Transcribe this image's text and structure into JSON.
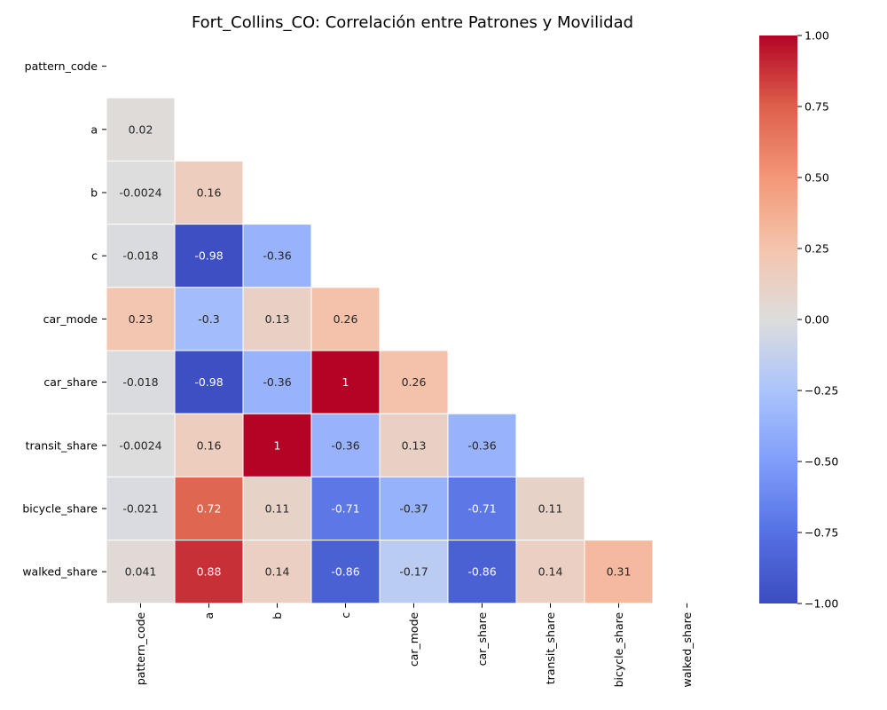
{
  "chart_data": {
    "type": "heatmap",
    "title": "Fort_Collins_CO: Correlación entre Patrones y Movilidad",
    "variables": [
      "pattern_code",
      "a",
      "b",
      "c",
      "car_mode",
      "car_share",
      "transit_share",
      "bicycle_share",
      "walked_share"
    ],
    "mask": "upper-triangle-including-diagonal",
    "matrix": [
      [
        null,
        null,
        null,
        null,
        null,
        null,
        null,
        null,
        null
      ],
      [
        0.02,
        null,
        null,
        null,
        null,
        null,
        null,
        null,
        null
      ],
      [
        -0.0024,
        0.16,
        null,
        null,
        null,
        null,
        null,
        null,
        null
      ],
      [
        -0.018,
        -0.98,
        -0.36,
        null,
        null,
        null,
        null,
        null,
        null
      ],
      [
        0.23,
        -0.3,
        0.13,
        0.26,
        null,
        null,
        null,
        null,
        null
      ],
      [
        -0.018,
        -0.98,
        -0.36,
        1,
        0.26,
        null,
        null,
        null,
        null
      ],
      [
        -0.0024,
        0.16,
        1,
        -0.36,
        0.13,
        -0.36,
        null,
        null,
        null
      ],
      [
        -0.021,
        0.72,
        0.11,
        -0.71,
        -0.37,
        -0.71,
        0.11,
        null,
        null
      ],
      [
        0.041,
        0.88,
        0.14,
        -0.86,
        -0.17,
        -0.86,
        0.14,
        0.31,
        null
      ]
    ],
    "annotations": [
      [
        "",
        "",
        "",
        "",
        "",
        "",
        "",
        "",
        ""
      ],
      [
        "0.02",
        "",
        "",
        "",
        "",
        "",
        "",
        "",
        ""
      ],
      [
        "-0.0024",
        "0.16",
        "",
        "",
        "",
        "",
        "",
        "",
        ""
      ],
      [
        "-0.018",
        "-0.98",
        "-0.36",
        "",
        "",
        "",
        "",
        "",
        ""
      ],
      [
        "0.23",
        "-0.3",
        "0.13",
        "0.26",
        "",
        "",
        "",
        "",
        ""
      ],
      [
        "-0.018",
        "-0.98",
        "-0.36",
        "1",
        "0.26",
        "",
        "",
        "",
        ""
      ],
      [
        "-0.0024",
        "0.16",
        "1",
        "-0.36",
        "0.13",
        "-0.36",
        "",
        "",
        ""
      ],
      [
        "-0.021",
        "0.72",
        "0.11",
        "-0.71",
        "-0.37",
        "-0.71",
        "0.11",
        "",
        ""
      ],
      [
        "0.041",
        "0.88",
        "0.14",
        "-0.86",
        "-0.17",
        "-0.86",
        "0.14",
        "0.31",
        ""
      ]
    ],
    "colormap": "coolwarm",
    "vmin": -1,
    "vmax": 1,
    "colorbar_ticks": [
      1.0,
      0.75,
      0.5,
      0.25,
      0.0,
      -0.25,
      -0.5,
      -0.75,
      -1.0
    ],
    "colorbar_tick_labels": [
      "1.00",
      "0.75",
      "0.50",
      "0.25",
      "0.00",
      "−0.25",
      "−0.50",
      "−0.75",
      "−1.00"
    ],
    "grid": false,
    "legend": "colorbar-right"
  }
}
